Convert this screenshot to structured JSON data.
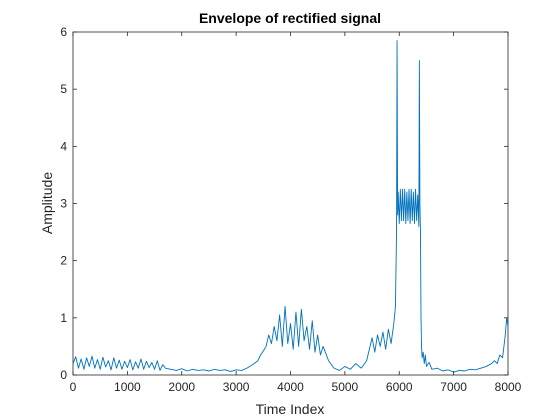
{
  "chart_data": {
    "type": "line",
    "title": "Envelope of rectified signal",
    "xlabel": "Time Index",
    "ylabel": "Amplitude",
    "xlim": [
      0,
      8000
    ],
    "ylim": [
      0,
      6
    ],
    "x_ticks": [
      "0",
      "1000",
      "2000",
      "3000",
      "4000",
      "5000",
      "6000",
      "7000",
      "8000"
    ],
    "y_ticks": [
      "0",
      "1",
      "2",
      "3",
      "4",
      "5",
      "6"
    ],
    "grid": false,
    "legend": "none",
    "series": [
      {
        "color": "#0072BD",
        "x": [
          0,
          50,
          100,
          150,
          200,
          250,
          300,
          350,
          400,
          450,
          500,
          550,
          600,
          650,
          700,
          750,
          800,
          850,
          900,
          950,
          1000,
          1050,
          1100,
          1150,
          1200,
          1250,
          1300,
          1350,
          1400,
          1450,
          1500,
          1550,
          1600,
          1650,
          1700,
          1800,
          1900,
          2000,
          2100,
          2200,
          2300,
          2400,
          2500,
          2600,
          2700,
          2800,
          2900,
          3000,
          3100,
          3200,
          3300,
          3400,
          3450,
          3500,
          3550,
          3600,
          3650,
          3700,
          3750,
          3800,
          3850,
          3900,
          3950,
          4000,
          4050,
          4100,
          4150,
          4200,
          4250,
          4300,
          4350,
          4400,
          4450,
          4500,
          4550,
          4600,
          4700,
          4800,
          4900,
          5000,
          5100,
          5200,
          5300,
          5400,
          5450,
          5500,
          5550,
          5600,
          5650,
          5700,
          5750,
          5800,
          5850,
          5900,
          5930,
          5950,
          5960,
          5970,
          5980,
          6000,
          6020,
          6040,
          6060,
          6080,
          6100,
          6120,
          6140,
          6160,
          6180,
          6200,
          6220,
          6240,
          6260,
          6280,
          6300,
          6320,
          6340,
          6360,
          6370,
          6380,
          6390,
          6400,
          6410,
          6420,
          6440,
          6460,
          6480,
          6500,
          6550,
          6600,
          6700,
          6800,
          6900,
          7000,
          7100,
          7200,
          7300,
          7400,
          7500,
          7600,
          7700,
          7750,
          7800,
          7850,
          7900,
          7925,
          7950,
          7975,
          8000
        ],
        "y": [
          0.2,
          0.32,
          0.12,
          0.28,
          0.1,
          0.3,
          0.15,
          0.33,
          0.12,
          0.27,
          0.1,
          0.31,
          0.14,
          0.25,
          0.09,
          0.3,
          0.12,
          0.26,
          0.1,
          0.24,
          0.13,
          0.27,
          0.09,
          0.23,
          0.12,
          0.28,
          0.1,
          0.24,
          0.13,
          0.22,
          0.1,
          0.25,
          0.08,
          0.18,
          0.12,
          0.1,
          0.08,
          0.11,
          0.07,
          0.1,
          0.08,
          0.09,
          0.07,
          0.1,
          0.08,
          0.09,
          0.06,
          0.09,
          0.08,
          0.12,
          0.18,
          0.25,
          0.35,
          0.42,
          0.5,
          0.7,
          0.55,
          0.85,
          0.6,
          1.05,
          0.5,
          1.2,
          0.55,
          0.9,
          0.45,
          1.1,
          0.5,
          1.15,
          0.6,
          0.85,
          0.45,
          0.95,
          0.4,
          0.7,
          0.35,
          0.5,
          0.25,
          0.12,
          0.08,
          0.15,
          0.1,
          0.2,
          0.12,
          0.25,
          0.45,
          0.65,
          0.4,
          0.7,
          0.5,
          0.75,
          0.45,
          0.8,
          0.55,
          0.9,
          1.2,
          2.5,
          5.85,
          2.8,
          3.2,
          2.65,
          3.25,
          2.7,
          3.25,
          2.7,
          3.25,
          2.65,
          3.2,
          2.7,
          3.25,
          2.65,
          3.25,
          2.7,
          3.2,
          2.65,
          3.25,
          2.7,
          3.15,
          2.6,
          5.5,
          3.0,
          2.5,
          1.0,
          0.5,
          0.3,
          0.4,
          0.2,
          0.35,
          0.15,
          0.22,
          0.1,
          0.12,
          0.07,
          0.09,
          0.05,
          0.08,
          0.07,
          0.1,
          0.09,
          0.12,
          0.15,
          0.2,
          0.25,
          0.2,
          0.35,
          0.3,
          0.5,
          0.7,
          1.0,
          0.85
        ]
      }
    ]
  }
}
